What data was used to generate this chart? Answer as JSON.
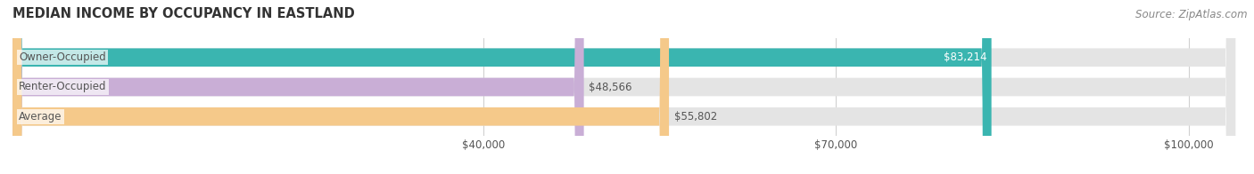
{
  "title": "MEDIAN INCOME BY OCCUPANCY IN EASTLAND",
  "source": "Source: ZipAtlas.com",
  "categories": [
    "Owner-Occupied",
    "Renter-Occupied",
    "Average"
  ],
  "values": [
    83214,
    48566,
    55802
  ],
  "bar_colors": [
    "#3ab5b0",
    "#c9aed6",
    "#f5c98a"
  ],
  "track_color": "#e4e4e4",
  "label_color": "#555555",
  "xlim": [
    0,
    105000
  ],
  "xticks": [
    40000,
    70000,
    100000
  ],
  "xtick_labels": [
    "$40,000",
    "$70,000",
    "$100,000"
  ],
  "bar_height": 0.62,
  "figsize": [
    14.06,
    1.96
  ],
  "dpi": 100,
  "title_fontsize": 10.5,
  "label_fontsize": 8.5,
  "value_fontsize": 8.5,
  "source_fontsize": 8.5,
  "background_color": "#ffffff",
  "grid_color": "#d0d0d0",
  "title_color": "#333333",
  "source_color": "#888888"
}
